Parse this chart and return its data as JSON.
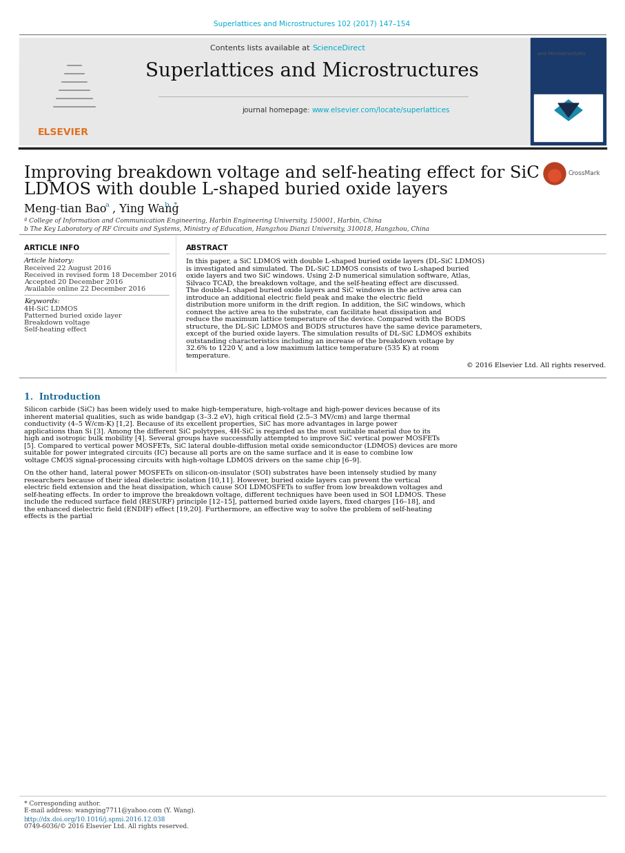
{
  "page_bg": "#ffffff",
  "top_citation": "Superlattices and Microstructures 102 (2017) 147–154",
  "top_citation_color": "#00aacc",
  "journal_name": "Superlattices and Microstructures",
  "contents_text": "Contents lists available at ",
  "sciencedirect_text": "ScienceDirect",
  "sciencedirect_color": "#00aacc",
  "homepage_text": "journal homepage: ",
  "homepage_url": "www.elsevier.com/locate/superlattices",
  "homepage_color": "#00aacc",
  "header_bg": "#e8e8e8",
  "article_title": "Improving breakdown voltage and self-heating effect for SiC\nLDMOS with double L-shaped buried oxide layers",
  "authors": "Meng-tian Bao",
  "authors2": ", Ying Wang",
  "author_sup1": "a",
  "author_sup2": "b, *",
  "affil1": "ª College of Information and Communication Engineering, Harbin Engineering University, 150001, Harbin, China",
  "affil2": "b The Key Laboratory of RF Circuits and Systems, Ministry of Education, Hangzhou Dianzi University, 310018, Hangzhou, China",
  "section_article_info": "ARTICLE INFO",
  "section_abstract": "ABSTRACT",
  "article_history_label": "Article history:",
  "received1": "Received 22 August 2016",
  "received2": "Received in revised form 18 December 2016",
  "accepted": "Accepted 20 December 2016",
  "available": "Available online 22 December 2016",
  "keywords_label": "Keywords:",
  "keyword1": "4H-SiC LDMOS",
  "keyword2": "Patterned buried oxide layer",
  "keyword3": "Breakdown voltage",
  "keyword4": "Self-heating effect",
  "abstract_text": "In this paper, a SiC LDMOS with double L-shaped buried oxide layers (DL-SiC LDMOS) is investigated and simulated. The DL-SiC LDMOS consists of two L-shaped buried oxide layers and two SiC windows. Using 2-D numerical simulation software, Atlas, Silvaco TCAD, the breakdown voltage, and the self-heating effect are discussed. The double-L shaped buried oxide layers and SiC windows in the active area can introduce an additional electric field peak and make the electric field distribution more uniform in the drift region. In addition, the SiC windows, which connect the active area to the substrate, can facilitate heat dissipation and reduce the maximum lattice temperature of the device. Compared with the BODS structure, the DL-SiC LDMOS and BODS structures have the same device parameters, except of the buried oxide layers. The simulation results of DL-SiC LDMOS exhibits outstanding characteristics including an increase of the breakdown voltage by 32.6% to 1220 V, and a low maximum lattice temperature (535 K) at room temperature.",
  "copyright": "© 2016 Elsevier Ltd. All rights reserved.",
  "intro_heading": "1.  Introduction",
  "intro_text1": "Silicon carbide (SiC) has been widely used to make high-temperature, high-voltage and high-power devices because of its inherent material qualities, such as wide bandgap (3–3.2 eV), high critical field (2.5–3 MV/cm) and large thermal conductivity (4–5 W/cm-K) [1,2]. Because of its excellent properties, SiC has more advantages in large power applications than Si [3]. Among the different SiC polytypes, 4H-SiC is regarded as the most suitable material due to its high and isotropic bulk mobility [4]. Several groups have successfully attempted to improve SiC vertical power MOSFETs [5]. Compared to vertical power MOSFETs, SiC lateral double-diffusion metal oxide semiconductor (LDMOS) devices are more suitable for power integrated circuits (IC) because all ports are on the same surface and it is ease to combine low voltage CMOS signal-processing circuits with high-voltage LDMOS drivers on the same chip [6–9].",
  "intro_text2": "On the other hand, lateral power MOSFETs on silicon-on-insulator (SOI) substrates have been intensely studied by many researchers because of their ideal dielectric isolation [10,11]. However, buried oxide layers can prevent the vertical electric field extension and the heat dissipation, which cause SOI LDMOSFETs to suffer from low breakdown voltages and self-heating effects. In order to improve the breakdown voltage, different techniques have been used in SOI LDMOS. These include the reduced surface field (RESURF) principle [12–15], patterned buried oxide layers, fixed charges [16–18], and the enhanced dielectric field (ENDIF) effect [19,20]. Furthermore, an effective way to solve the problem of self-heating effects is the partial",
  "footer_line1": "* Corresponding author.",
  "footer_line2": "E-mail address: wangying7711@yahoo.com (Y. Wang).",
  "footer_doi": "http://dx.doi.org/10.1016/j.spmi.2016.12.038",
  "footer_issn": "0749-6036/© 2016 Elsevier Ltd. All rights reserved.",
  "separator_color": "#333333",
  "title_bar_color": "#222222",
  "intro_color": "#1a6b9a"
}
